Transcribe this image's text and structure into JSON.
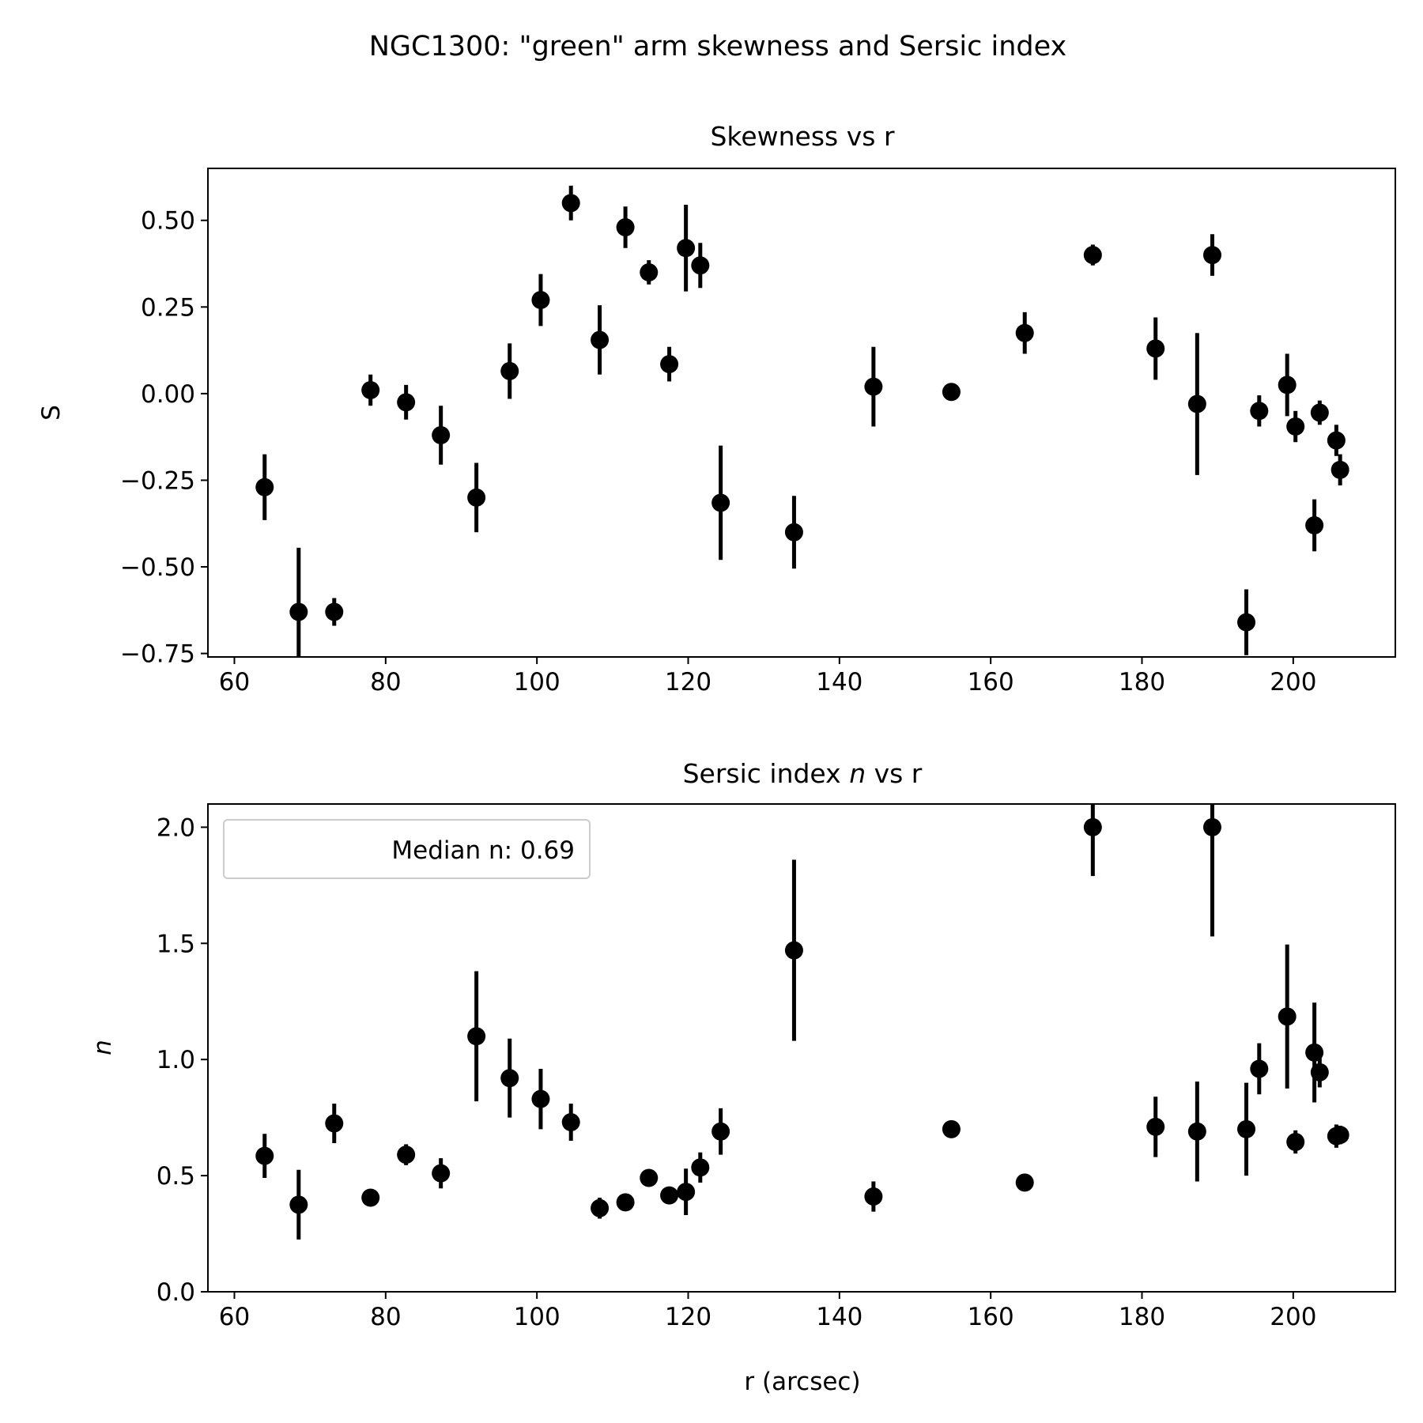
{
  "figure": {
    "suptitle": "NGC1300: \"green\" arm skewness and Sersic index"
  },
  "chart_data": [
    {
      "type": "scatter",
      "subtype": "errorbar",
      "title": "Skewness vs r",
      "xlabel": "",
      "ylabel": "S",
      "xlim": [
        56.5,
        213.5
      ],
      "ylim": [
        -0.76,
        0.65
      ],
      "xticks": [
        60,
        80,
        100,
        120,
        140,
        160,
        180,
        200
      ],
      "xtick_labels": [
        "60",
        "80",
        "100",
        "120",
        "140",
        "160",
        "180",
        "200"
      ],
      "yticks": [
        -0.75,
        -0.5,
        -0.25,
        0.0,
        0.25,
        0.5
      ],
      "ytick_labels": [
        "−0.75",
        "−0.50",
        "−0.25",
        "0.00",
        "0.25",
        "0.50"
      ],
      "grid": false,
      "marker_color": "#000000",
      "points": [
        {
          "x": 64.0,
          "y": -0.27,
          "err": 0.095
        },
        {
          "x": 68.5,
          "y": -0.63,
          "err": 0.185
        },
        {
          "x": 73.2,
          "y": -0.63,
          "err": 0.04
        },
        {
          "x": 78.0,
          "y": 0.01,
          "err": 0.045
        },
        {
          "x": 82.7,
          "y": -0.025,
          "err": 0.05
        },
        {
          "x": 87.3,
          "y": -0.12,
          "err": 0.085
        },
        {
          "x": 92.0,
          "y": -0.3,
          "err": 0.1
        },
        {
          "x": 96.4,
          "y": 0.065,
          "err": 0.08
        },
        {
          "x": 100.5,
          "y": 0.27,
          "err": 0.075
        },
        {
          "x": 104.5,
          "y": 0.55,
          "err": 0.05
        },
        {
          "x": 108.3,
          "y": 0.155,
          "err": 0.1
        },
        {
          "x": 111.7,
          "y": 0.48,
          "err": 0.06
        },
        {
          "x": 114.8,
          "y": 0.35,
          "err": 0.035
        },
        {
          "x": 117.5,
          "y": 0.085,
          "err": 0.05
        },
        {
          "x": 119.7,
          "y": 0.42,
          "err": 0.125
        },
        {
          "x": 121.6,
          "y": 0.37,
          "err": 0.065
        },
        {
          "x": 124.3,
          "y": -0.315,
          "err": 0.165
        },
        {
          "x": 134.0,
          "y": -0.4,
          "err": 0.105
        },
        {
          "x": 144.5,
          "y": 0.02,
          "err": 0.115
        },
        {
          "x": 154.8,
          "y": 0.005,
          "err": 0.01
        },
        {
          "x": 164.5,
          "y": 0.175,
          "err": 0.06
        },
        {
          "x": 173.5,
          "y": 0.4,
          "err": 0.03
        },
        {
          "x": 181.8,
          "y": 0.13,
          "err": 0.09
        },
        {
          "x": 187.3,
          "y": -0.03,
          "err": 0.205
        },
        {
          "x": 189.3,
          "y": 0.4,
          "err": 0.06
        },
        {
          "x": 193.8,
          "y": -0.66,
          "err": 0.095
        },
        {
          "x": 195.5,
          "y": -0.05,
          "err": 0.045
        },
        {
          "x": 199.2,
          "y": 0.025,
          "err": 0.09
        },
        {
          "x": 200.3,
          "y": -0.095,
          "err": 0.045
        },
        {
          "x": 202.8,
          "y": -0.38,
          "err": 0.075
        },
        {
          "x": 203.5,
          "y": -0.055,
          "err": 0.035
        },
        {
          "x": 205.7,
          "y": -0.135,
          "err": 0.045
        },
        {
          "x": 206.2,
          "y": -0.22,
          "err": 0.045
        }
      ]
    },
    {
      "type": "scatter",
      "subtype": "errorbar",
      "title": "Sersic index ",
      "title_italic": "n",
      "title_suffix": " vs r",
      "xlabel": "r (arcsec)",
      "ylabel": "n",
      "xlim": [
        56.5,
        213.5
      ],
      "ylim": [
        0.0,
        2.1
      ],
      "xticks": [
        60,
        80,
        100,
        120,
        140,
        160,
        180,
        200
      ],
      "xtick_labels": [
        "60",
        "80",
        "100",
        "120",
        "140",
        "160",
        "180",
        "200"
      ],
      "yticks": [
        0.0,
        0.5,
        1.0,
        1.5,
        2.0
      ],
      "ytick_labels": [
        "0.0",
        "0.5",
        "1.0",
        "1.5",
        "2.0"
      ],
      "grid": false,
      "legend": {
        "position": "upper-left",
        "entries": [
          "Median n: 0.69"
        ]
      },
      "marker_color": "#000000",
      "points": [
        {
          "x": 64.0,
          "y": 0.585,
          "err": 0.095
        },
        {
          "x": 68.5,
          "y": 0.375,
          "err": 0.15
        },
        {
          "x": 73.2,
          "y": 0.725,
          "err": 0.085
        },
        {
          "x": 78.0,
          "y": 0.405,
          "err": 0.02
        },
        {
          "x": 82.7,
          "y": 0.59,
          "err": 0.045
        },
        {
          "x": 87.3,
          "y": 0.51,
          "err": 0.065
        },
        {
          "x": 92.0,
          "y": 1.1,
          "err": 0.28
        },
        {
          "x": 96.4,
          "y": 0.92,
          "err": 0.17
        },
        {
          "x": 100.5,
          "y": 0.83,
          "err": 0.13
        },
        {
          "x": 104.5,
          "y": 0.73,
          "err": 0.08
        },
        {
          "x": 108.3,
          "y": 0.36,
          "err": 0.045
        },
        {
          "x": 111.7,
          "y": 0.385,
          "err": 0.03
        },
        {
          "x": 114.8,
          "y": 0.49,
          "err": 0.02
        },
        {
          "x": 117.5,
          "y": 0.415,
          "err": 0.015
        },
        {
          "x": 119.7,
          "y": 0.43,
          "err": 0.1
        },
        {
          "x": 121.6,
          "y": 0.535,
          "err": 0.065
        },
        {
          "x": 124.3,
          "y": 0.69,
          "err": 0.1
        },
        {
          "x": 134.0,
          "y": 1.47,
          "err": 0.39
        },
        {
          "x": 144.5,
          "y": 0.41,
          "err": 0.065
        },
        {
          "x": 154.8,
          "y": 0.7,
          "err": 0.02
        },
        {
          "x": 164.5,
          "y": 0.47,
          "err": 0.035
        },
        {
          "x": 173.5,
          "y": 2.0,
          "err": 0.21
        },
        {
          "x": 181.8,
          "y": 0.71,
          "err": 0.13
        },
        {
          "x": 187.3,
          "y": 0.69,
          "err": 0.215
        },
        {
          "x": 189.3,
          "y": 2.0,
          "err": 0.47
        },
        {
          "x": 193.8,
          "y": 0.7,
          "err": 0.2
        },
        {
          "x": 195.5,
          "y": 0.96,
          "err": 0.11
        },
        {
          "x": 199.2,
          "y": 1.185,
          "err": 0.31
        },
        {
          "x": 200.3,
          "y": 0.645,
          "err": 0.05
        },
        {
          "x": 202.8,
          "y": 1.03,
          "err": 0.215
        },
        {
          "x": 203.5,
          "y": 0.945,
          "err": 0.065
        },
        {
          "x": 205.7,
          "y": 0.67,
          "err": 0.05
        },
        {
          "x": 206.2,
          "y": 0.675,
          "err": 0.04
        }
      ]
    }
  ]
}
